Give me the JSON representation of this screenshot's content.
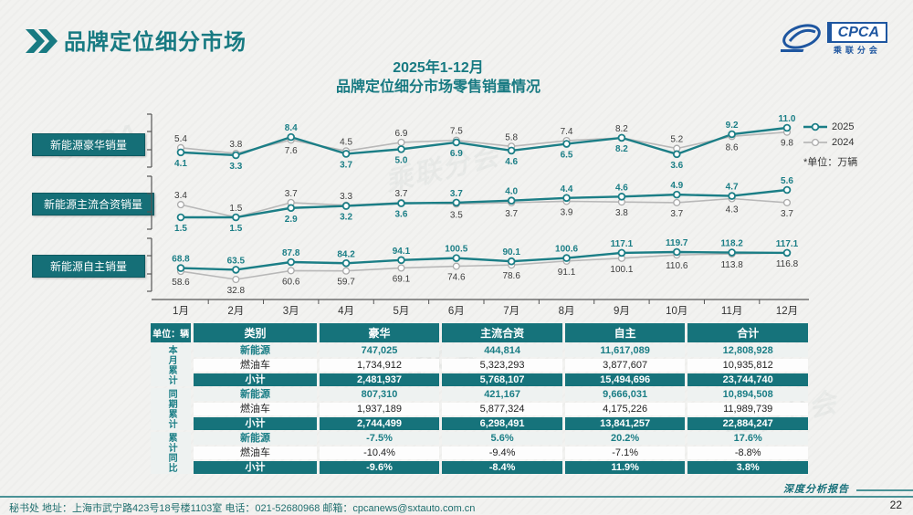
{
  "page": {
    "title": "品牌定位细分市场",
    "page_number": "22",
    "footer_left": "秘书处   地址：上海市武宁路423号18号楼1103室  电话：021-52680968   邮箱：cpcanews@sxtauto.com.cn",
    "report_label": "深度分析报告"
  },
  "logo": {
    "text": "CPCA",
    "subtext": "乘联分会"
  },
  "chart": {
    "title_line1": "2025年1-12月",
    "title_line2": "品牌定位细分市场零售销量情况",
    "unit_note": "*单位：万辆",
    "legend": {
      "s2025": "2025",
      "s2024": "2024"
    }
  },
  "colors": {
    "accent_teal": "#16737b",
    "teal_text": "#1b7e86",
    "line_2025": "#1b7e86",
    "line_2024": "#b8b8b8",
    "label_dark": "#3c3c3c",
    "logo_blue": "#1e56a0"
  },
  "chart_data": {
    "type": "line",
    "title": "2025年1-12月 品牌定位细分市场零售销量情况",
    "unit": "万辆",
    "legend_position": "top-right",
    "grid": false,
    "categories": [
      "1月",
      "2月",
      "3月",
      "4月",
      "5月",
      "6月",
      "7月",
      "8月",
      "9月",
      "10月",
      "11月",
      "12月"
    ],
    "panels": [
      {
        "title": "新能源豪华销量",
        "series": [
          {
            "name": "2025",
            "values": [
              4.1,
              3.3,
              8.4,
              3.7,
              5.0,
              6.9,
              4.6,
              6.5,
              8.2,
              3.6,
              9.2,
              11.0
            ]
          },
          {
            "name": "2024",
            "values": [
              5.4,
              3.8,
              7.6,
              4.5,
              6.9,
              7.5,
              5.8,
              7.4,
              8.2,
              5.2,
              8.6,
              9.8
            ]
          }
        ]
      },
      {
        "title": "新能源主流合资销量",
        "series": [
          {
            "name": "2025",
            "values": [
              1.5,
              1.5,
              2.9,
              3.2,
              3.6,
              3.7,
              4.0,
              4.4,
              4.6,
              4.9,
              4.7,
              5.6
            ]
          },
          {
            "name": "2024",
            "values": [
              3.4,
              1.5,
              3.7,
              3.3,
              3.7,
              3.5,
              3.7,
              3.9,
              3.8,
              3.7,
              4.3,
              3.7
            ]
          }
        ]
      },
      {
        "title": "新能源自主销量",
        "series": [
          {
            "name": "2025",
            "values": [
              68.8,
              63.5,
              87.8,
              84.2,
              94.1,
              100.5,
              90.1,
              100.6,
              117.1,
              119.7,
              118.2,
              117.1
            ]
          },
          {
            "name": "2024",
            "values": [
              58.6,
              32.8,
              60.6,
              59.7,
              69.1,
              74.6,
              78.6,
              91.1,
              100.1,
              110.6,
              113.8,
              116.8
            ]
          }
        ]
      }
    ]
  },
  "table": {
    "unit_label": "单位：辆",
    "columns": [
      "类别",
      "豪华",
      "主流合资",
      "自主",
      "合计"
    ],
    "groups": [
      {
        "label": "本月累计",
        "rows": [
          {
            "type": "ne",
            "cells": [
              "新能源",
              "747,025",
              "444,814",
              "11,617,089",
              "12,808,928"
            ]
          },
          {
            "type": "fuel",
            "cells": [
              "燃油车",
              "1,734,912",
              "5,323,293",
              "3,877,607",
              "10,935,812"
            ]
          },
          {
            "type": "sub",
            "cells": [
              "小计",
              "2,481,937",
              "5,768,107",
              "15,494,696",
              "23,744,740"
            ]
          }
        ]
      },
      {
        "label": "同期累计",
        "rows": [
          {
            "type": "ne",
            "cells": [
              "新能源",
              "807,310",
              "421,167",
              "9,666,031",
              "10,894,508"
            ]
          },
          {
            "type": "fuel",
            "cells": [
              "燃油车",
              "1,937,189",
              "5,877,324",
              "4,175,226",
              "11,989,739"
            ]
          },
          {
            "type": "sub",
            "cells": [
              "小计",
              "2,744,499",
              "6,298,491",
              "13,841,257",
              "22,884,247"
            ]
          }
        ]
      },
      {
        "label": "累计同比",
        "rows": [
          {
            "type": "ne",
            "cells": [
              "新能源",
              "-7.5%",
              "5.6%",
              "20.2%",
              "17.6%"
            ]
          },
          {
            "type": "fuel",
            "cells": [
              "燃油车",
              "-10.4%",
              "-9.4%",
              "-7.1%",
              "-8.8%"
            ]
          },
          {
            "type": "sub",
            "cells": [
              "小计",
              "-9.6%",
              "-8.4%",
              "11.9%",
              "3.8%"
            ]
          }
        ]
      }
    ]
  }
}
